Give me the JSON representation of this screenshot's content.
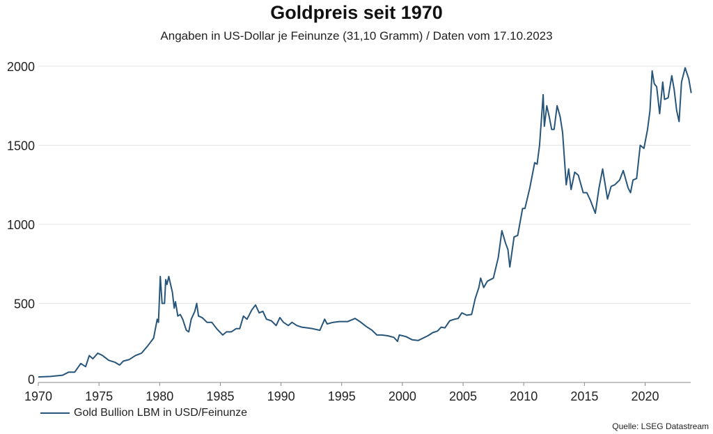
{
  "chart_data": {
    "type": "line",
    "title": "Goldpreis seit 1970",
    "subtitle": "Angaben in US-Dollar je Feinunze (31,10 Gramm) / Daten vom 17.10.2023",
    "xlabel": "",
    "ylabel": "",
    "xlim": [
      1970,
      2023.8
    ],
    "ylim": [
      0,
      2000
    ],
    "x_ticks": [
      1970,
      1975,
      1980,
      1985,
      1990,
      1995,
      2000,
      2005,
      2010,
      2015,
      2020
    ],
    "y_ticks": [
      0,
      500,
      1000,
      1500,
      2000
    ],
    "grid": "horizontal",
    "legend_position": "bottom-left",
    "line_color": "#27557a",
    "source": "Quelle: LSEG Datastream",
    "series": [
      {
        "name": "Gold Bullion LBM in USD/Feinunze",
        "points": [
          [
            1970,
            35
          ],
          [
            1971,
            38
          ],
          [
            1972,
            46
          ],
          [
            1972.5,
            65
          ],
          [
            1973,
            65
          ],
          [
            1973.5,
            120
          ],
          [
            1973.9,
            100
          ],
          [
            1974.2,
            170
          ],
          [
            1974.5,
            150
          ],
          [
            1974.9,
            185
          ],
          [
            1975.3,
            170
          ],
          [
            1975.8,
            140
          ],
          [
            1976.3,
            128
          ],
          [
            1976.7,
            110
          ],
          [
            1977,
            135
          ],
          [
            1977.5,
            145
          ],
          [
            1978,
            170
          ],
          [
            1978.5,
            185
          ],
          [
            1979,
            230
          ],
          [
            1979.5,
            280
          ],
          [
            1979.8,
            400
          ],
          [
            1979.9,
            380
          ],
          [
            1980.05,
            670
          ],
          [
            1980.2,
            500
          ],
          [
            1980.4,
            500
          ],
          [
            1980.5,
            650
          ],
          [
            1980.6,
            620
          ],
          [
            1980.75,
            670
          ],
          [
            1980.9,
            620
          ],
          [
            1981.05,
            570
          ],
          [
            1981.2,
            470
          ],
          [
            1981.3,
            510
          ],
          [
            1981.5,
            420
          ],
          [
            1981.7,
            430
          ],
          [
            1981.9,
            400
          ],
          [
            1982.2,
            330
          ],
          [
            1982.4,
            320
          ],
          [
            1982.6,
            400
          ],
          [
            1982.9,
            450
          ],
          [
            1983.05,
            500
          ],
          [
            1983.2,
            420
          ],
          [
            1983.5,
            410
          ],
          [
            1983.9,
            380
          ],
          [
            1984.3,
            380
          ],
          [
            1984.7,
            340
          ],
          [
            1985.2,
            300
          ],
          [
            1985.5,
            320
          ],
          [
            1985.9,
            320
          ],
          [
            1986.3,
            340
          ],
          [
            1986.6,
            340
          ],
          [
            1986.9,
            420
          ],
          [
            1987.2,
            400
          ],
          [
            1987.6,
            460
          ],
          [
            1987.9,
            490
          ],
          [
            1988.2,
            440
          ],
          [
            1988.5,
            450
          ],
          [
            1988.8,
            400
          ],
          [
            1989.2,
            390
          ],
          [
            1989.6,
            360
          ],
          [
            1989.9,
            410
          ],
          [
            1990.2,
            380
          ],
          [
            1990.6,
            360
          ],
          [
            1990.9,
            380
          ],
          [
            1991.3,
            360
          ],
          [
            1991.7,
            350
          ],
          [
            1992.2,
            345
          ],
          [
            1992.6,
            340
          ],
          [
            1993.2,
            330
          ],
          [
            1993.6,
            400
          ],
          [
            1993.8,
            370
          ],
          [
            1994.3,
            380
          ],
          [
            1994.8,
            385
          ],
          [
            1995.5,
            385
          ],
          [
            1996.1,
            405
          ],
          [
            1996.5,
            385
          ],
          [
            1997,
            355
          ],
          [
            1997.5,
            330
          ],
          [
            1997.9,
            300
          ],
          [
            1998.3,
            300
          ],
          [
            1998.8,
            295
          ],
          [
            1999.3,
            285
          ],
          [
            1999.6,
            260
          ],
          [
            1999.75,
            300
          ],
          [
            2000.3,
            290
          ],
          [
            2000.8,
            270
          ],
          [
            2001.3,
            265
          ],
          [
            2001.7,
            280
          ],
          [
            2002.1,
            295
          ],
          [
            2002.5,
            315
          ],
          [
            2002.9,
            325
          ],
          [
            2003.2,
            350
          ],
          [
            2003.5,
            345
          ],
          [
            2003.9,
            390
          ],
          [
            2004.3,
            400
          ],
          [
            2004.6,
            405
          ],
          [
            2004.9,
            440
          ],
          [
            2005.3,
            425
          ],
          [
            2005.7,
            430
          ],
          [
            2006,
            530
          ],
          [
            2006.3,
            600
          ],
          [
            2006.45,
            660
          ],
          [
            2006.7,
            600
          ],
          [
            2007,
            640
          ],
          [
            2007.5,
            660
          ],
          [
            2007.9,
            790
          ],
          [
            2008.2,
            960
          ],
          [
            2008.5,
            880
          ],
          [
            2008.7,
            840
          ],
          [
            2008.85,
            730
          ],
          [
            2009.2,
            920
          ],
          [
            2009.5,
            930
          ],
          [
            2009.9,
            1100
          ],
          [
            2010.1,
            1100
          ],
          [
            2010.5,
            1230
          ],
          [
            2010.9,
            1390
          ],
          [
            2011.1,
            1380
          ],
          [
            2011.3,
            1500
          ],
          [
            2011.6,
            1820
          ],
          [
            2011.7,
            1620
          ],
          [
            2011.9,
            1750
          ],
          [
            2012.1,
            1680
          ],
          [
            2012.3,
            1600
          ],
          [
            2012.5,
            1600
          ],
          [
            2012.75,
            1750
          ],
          [
            2013,
            1680
          ],
          [
            2013.2,
            1580
          ],
          [
            2013.5,
            1250
          ],
          [
            2013.7,
            1350
          ],
          [
            2013.9,
            1220
          ],
          [
            2014.2,
            1330
          ],
          [
            2014.5,
            1310
          ],
          [
            2014.9,
            1200
          ],
          [
            2015.2,
            1200
          ],
          [
            2015.5,
            1150
          ],
          [
            2015.9,
            1070
          ],
          [
            2016.2,
            1230
          ],
          [
            2016.5,
            1350
          ],
          [
            2016.9,
            1160
          ],
          [
            2017.2,
            1240
          ],
          [
            2017.5,
            1250
          ],
          [
            2017.9,
            1280
          ],
          [
            2018.2,
            1340
          ],
          [
            2018.6,
            1230
          ],
          [
            2018.8,
            1200
          ],
          [
            2019,
            1280
          ],
          [
            2019.3,
            1290
          ],
          [
            2019.6,
            1500
          ],
          [
            2019.9,
            1480
          ],
          [
            2020.2,
            1600
          ],
          [
            2020.4,
            1720
          ],
          [
            2020.58,
            1970
          ],
          [
            2020.75,
            1890
          ],
          [
            2020.95,
            1870
          ],
          [
            2021.2,
            1700
          ],
          [
            2021.45,
            1900
          ],
          [
            2021.6,
            1790
          ],
          [
            2021.9,
            1800
          ],
          [
            2022.2,
            1940
          ],
          [
            2022.4,
            1850
          ],
          [
            2022.6,
            1720
          ],
          [
            2022.8,
            1650
          ],
          [
            2023,
            1900
          ],
          [
            2023.3,
            1990
          ],
          [
            2023.6,
            1920
          ],
          [
            2023.8,
            1830
          ]
        ]
      }
    ]
  }
}
